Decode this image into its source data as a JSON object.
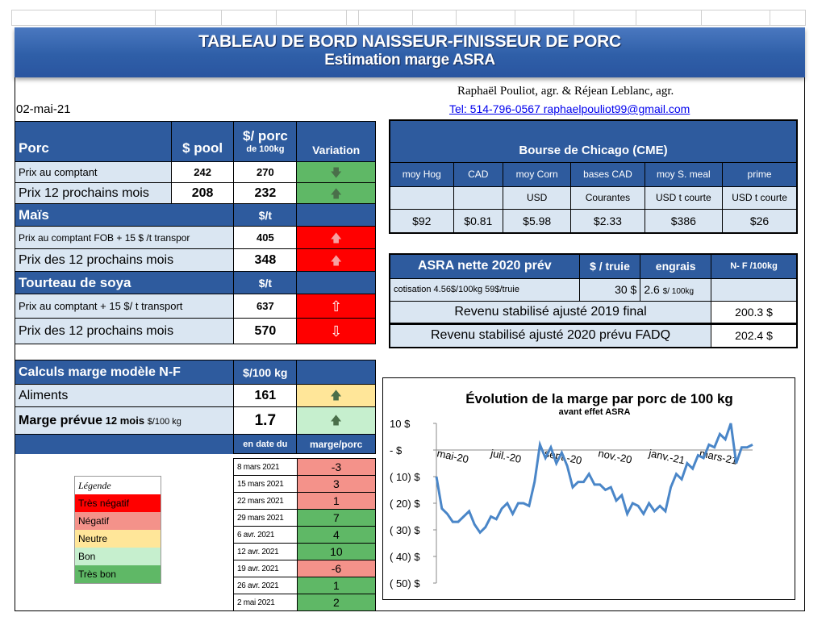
{
  "header": {
    "title": "TABLEAU  DE BORD NAISSEUR-FINISSEUR  DE PORC",
    "subtitle": "Estimation marge ASRA",
    "authors": "Raphaël Pouliot, agr.   &   Réjean Leblanc, agr.",
    "contact": "Tel:     514-796-0567   raphaelpouliot99@gmail.com",
    "date": "02-mai-21"
  },
  "porc": {
    "title": "Porc",
    "col_pool": "$ pool",
    "col_porc_1": "$/ porc",
    "col_porc_2": "de 100kg",
    "col_var": "Variation",
    "rows": [
      {
        "label": "Prix au comptant",
        "pool": "242",
        "porc": "270",
        "arrow": "🡇"
      },
      {
        "label": "Prix 12 prochains mois",
        "pool": "208",
        "porc": "232",
        "arrow": "🡅"
      }
    ]
  },
  "mais": {
    "title": "Maïs",
    "unit": "$/t",
    "rows": [
      {
        "label": "Prix au comptant  FOB + 15 $ /t transpor",
        "value": "405",
        "arrow": "🡅"
      },
      {
        "label": "Prix des 12 prochains mois",
        "value": "348",
        "arrow": "🡅"
      }
    ]
  },
  "soya": {
    "title": "Tourteau de soya",
    "unit": "$/t",
    "rows": [
      {
        "label": "Prix au comptant  + 15 $/ t  transport",
        "value": "637",
        "arrow": "⇧"
      },
      {
        "label": "Prix des 12 prochains mois",
        "value": "570",
        "arrow": "⇩"
      }
    ]
  },
  "calculs": {
    "title": "Calculs marge  modèle N-F",
    "unit": "$/100 kg",
    "aliments_label": "Aliments",
    "aliments_value": "161",
    "aliments_arrow": "🡅",
    "marge_label": "Marge prévue",
    "marge_sub": " 12 mois ",
    "marge_unit": "$/100 kg",
    "marge_value": "1.7",
    "marge_arrow": "🡅",
    "col_date": "en date du",
    "col_marge": "marge/porc",
    "history": [
      {
        "date": "8 mars 2021",
        "value": "-3",
        "status": "salmon"
      },
      {
        "date": "15 mars 2021",
        "value": "3",
        "status": "salmon"
      },
      {
        "date": "22 mars 2021",
        "value": "1",
        "status": "salmon"
      },
      {
        "date": "29 mars 2021",
        "value": "7",
        "status": "green"
      },
      {
        "date": "6 avr. 2021",
        "value": "4",
        "status": "green"
      },
      {
        "date": "12 avr. 2021",
        "value": "10",
        "status": "green"
      },
      {
        "date": "19 avr. 2021",
        "value": "-6",
        "status": "salmon"
      },
      {
        "date": "26 avr. 2021",
        "value": "1",
        "status": "green"
      },
      {
        "date": "2 mai 2021",
        "value": "2",
        "status": "green"
      }
    ]
  },
  "legend": {
    "title": "Légende",
    "items": [
      {
        "label": "Très négatif",
        "color": "#ff0000"
      },
      {
        "label": "Négatif",
        "color": "#f4928a"
      },
      {
        "label": "Neutre",
        "color": "#ffe699"
      },
      {
        "label": "Bon",
        "color": "#c6efce"
      },
      {
        "label": "Très bon",
        "color": "#5fb866"
      }
    ]
  },
  "cme": {
    "title": "Bourse de Chicago (CME)",
    "headers": [
      "moy Hog",
      "CAD",
      "moy Corn",
      "bases CAD",
      "moy S. meal",
      "prime"
    ],
    "units": [
      "",
      "",
      "USD",
      "Courantes",
      "USD t courte",
      "USD t courte"
    ],
    "values": [
      "$92",
      "$0.81",
      "$5.98",
      "$2.33",
      "$386",
      "$26"
    ]
  },
  "asra": {
    "title": "ASRA nette 2020 prév",
    "col_truie": "$ / truie",
    "col_engrais": "engrais",
    "col_nf": "N- F /100kg",
    "cotisation_label": "cotisation 4.56$/100kg  59$/truie",
    "truie_value": "30  $",
    "engrais_value": "2.6",
    "engrais_unit": "$/ 100kg",
    "rev2019_label": "Revenu stabilisé ajusté 2019 final",
    "rev2019_value": "200.3 $",
    "rev2020_label": "Revenu stabilisé ajusté 2020 prévu FADQ",
    "rev2020_value": "202.4 $"
  },
  "chart_data": {
    "type": "line",
    "title": "Évolution de la marge par porc de 100 kg",
    "subtitle": "avant effet ASRA",
    "ylim": [
      -50,
      10
    ],
    "yticks": [
      "10 $",
      "-  $",
      "( 10) $",
      "( 20) $",
      "( 30) $",
      "( 40) $",
      "( 50) $"
    ],
    "ytick_values": [
      10,
      0,
      -10,
      -20,
      -30,
      -40,
      -50
    ],
    "xticks": [
      "mai-20",
      "juil.-20",
      "sept.-20",
      "nov.-20",
      "janv.-21",
      "mars-21"
    ],
    "series": [
      {
        "color": "#4a86c8",
        "values": [
          -10,
          -22,
          -24,
          -27,
          -27,
          -25,
          -23,
          -28,
          -31,
          -29,
          -25,
          -26,
          -22,
          -20,
          -24,
          -20,
          -20,
          -21,
          -12,
          2,
          -3,
          1,
          -5,
          -1,
          -6,
          -14,
          -12,
          -12,
          -9,
          -13,
          -13,
          -15,
          -14,
          -19,
          -17,
          -24,
          -20,
          -21,
          -24,
          -20,
          -23,
          -21,
          -23,
          -14,
          -9,
          -11,
          -5,
          -7,
          -2,
          -3,
          2,
          1,
          6,
          4,
          10,
          -5,
          1,
          1,
          2
        ]
      }
    ]
  }
}
